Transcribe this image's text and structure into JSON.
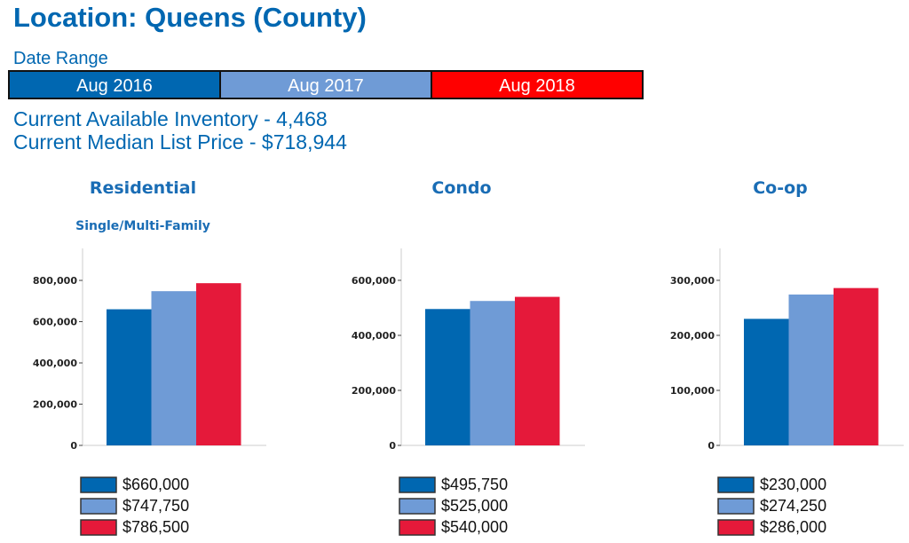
{
  "header": {
    "title": "Location: Queens (County)"
  },
  "date_range": {
    "label": "Date Range",
    "options": [
      {
        "label": "Aug 2016",
        "color": "#0067b1"
      },
      {
        "label": "Aug 2017",
        "color": "#6f9bd6"
      },
      {
        "label": "Aug 2018",
        "color": "#ff0000"
      }
    ]
  },
  "stats": {
    "inventory": "Current Available Inventory - 4,468",
    "median_price": "Current Median List Price - $718,944"
  },
  "chart_data": [
    {
      "type": "bar",
      "title": "Residential",
      "subtitle": "Single/Multi-Family",
      "categories": [
        "Aug 2016",
        "Aug 2017",
        "Aug 2018"
      ],
      "values": [
        660000,
        747750,
        786500
      ],
      "legend": [
        "$660,000",
        "$747,750",
        "$786,500"
      ],
      "colors": [
        "#0067b1",
        "#6f9bd6",
        "#e5193a"
      ],
      "yticks": [
        0,
        200000,
        400000,
        600000,
        800000
      ],
      "ytick_labels": [
        "0",
        "200,000",
        "400,000",
        "600,000",
        "800,000"
      ],
      "ylim": [
        0,
        955000
      ]
    },
    {
      "type": "bar",
      "title": "Condo",
      "subtitle": "",
      "categories": [
        "Aug 2016",
        "Aug 2017",
        "Aug 2018"
      ],
      "values": [
        495750,
        525000,
        540000
      ],
      "legend": [
        "$495,750",
        "$525,000",
        "$540,000"
      ],
      "colors": [
        "#0067b1",
        "#6f9bd6",
        "#e5193a"
      ],
      "yticks": [
        0,
        200000,
        400000,
        600000
      ],
      "ytick_labels": [
        "0",
        "200,000",
        "400,000",
        "600,000"
      ],
      "ylim": [
        0,
        716000
      ]
    },
    {
      "type": "bar",
      "title": "Co-op",
      "subtitle": "",
      "categories": [
        "Aug 2016",
        "Aug 2017",
        "Aug 2018"
      ],
      "values": [
        230000,
        274250,
        286000
      ],
      "legend": [
        "$230,000",
        "$274,250",
        "$286,000"
      ],
      "colors": [
        "#0067b1",
        "#6f9bd6",
        "#e5193a"
      ],
      "yticks": [
        0,
        100000,
        200000,
        300000
      ],
      "ytick_labels": [
        "0",
        "100,000",
        "200,000",
        "300,000"
      ],
      "ylim": [
        0,
        358000
      ]
    }
  ]
}
